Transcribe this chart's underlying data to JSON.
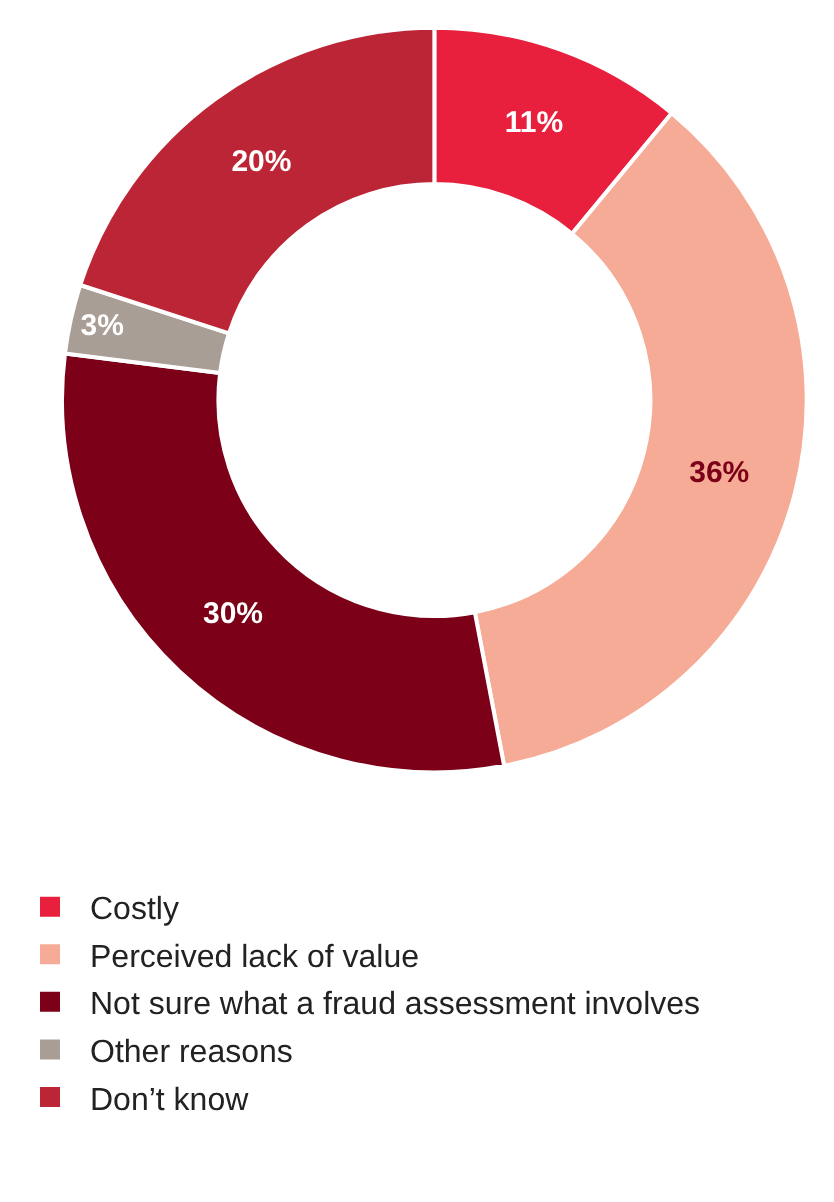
{
  "chart_data": {
    "type": "donut",
    "categories": [
      "Costly",
      "Perceived lack of value",
      "Not sure what a fraud assessment involves",
      "Other reasons",
      "Don’t know"
    ],
    "values": [
      11,
      36,
      30,
      3,
      20
    ],
    "colors": [
      "#e8203e",
      "#f6ab96",
      "#7c0017",
      "#a99e96",
      "#bb2535"
    ],
    "value_labels": [
      "11%",
      "36%",
      "30%",
      "3%",
      "20%"
    ],
    "legend": "bottom"
  }
}
